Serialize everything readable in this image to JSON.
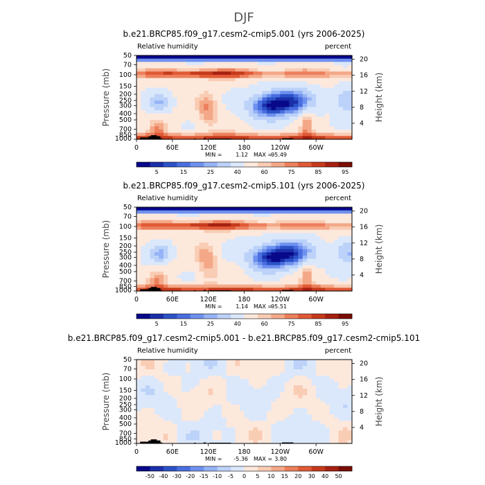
{
  "figure": {
    "title": "DJF"
  },
  "chart_data": [
    {
      "type": "heatmap",
      "title": "b.e21.BRCP85.f09_g17.cesm2-cmip5.001 (yrs 2006-2025)",
      "left_label": "Relative humidity",
      "right_label": "percent",
      "ylabel": "Pressure (mb)",
      "y2label": "Height (km)",
      "x_ticks": [
        "0",
        "60E",
        "120E",
        "180",
        "120W",
        "60W"
      ],
      "y_ticks": [
        "50",
        "70",
        "100",
        "150",
        "200",
        "250",
        "300",
        "400",
        "500",
        "700",
        "850",
        "1000"
      ],
      "y2_ticks": [
        "20",
        "16",
        "12",
        "8",
        "4"
      ],
      "stats": {
        "min_label": "MIN =",
        "min": "1.12",
        "max_label": "MAX =",
        "max": "95.49"
      },
      "colorbar_labels": [
        "5",
        "15",
        "25",
        "40",
        "60",
        "75",
        "85",
        "95"
      ],
      "colors": [
        "#08088a",
        "#1a2fa8",
        "#2c52c8",
        "#4a6ee0",
        "#6e91ee",
        "#95b3f6",
        "#bcd2f9",
        "#dbe8fb",
        "#fde8dc",
        "#f9ccb4",
        "#f4a888",
        "#ec7f5c",
        "#e05a36",
        "#c63a1c",
        "#a62010",
        "#7a0d04"
      ],
      "x_range": [
        0,
        360
      ],
      "y_range": [
        1000,
        50
      ]
    },
    {
      "type": "heatmap",
      "title": "b.e21.BRCP85.f09_g17.cesm2-cmip5.101 (yrs 2006-2025)",
      "left_label": "Relative humidity",
      "right_label": "percent",
      "ylabel": "Pressure (mb)",
      "y2label": "Height (km)",
      "x_ticks": [
        "0",
        "60E",
        "120E",
        "180",
        "120W",
        "60W"
      ],
      "y_ticks": [
        "50",
        "70",
        "100",
        "150",
        "200",
        "250",
        "300",
        "400",
        "500",
        "700",
        "850",
        "1000"
      ],
      "y2_ticks": [
        "20",
        "16",
        "12",
        "8",
        "4"
      ],
      "stats": {
        "min_label": "MIN =",
        "min": "1.14",
        "max_label": "MAX =",
        "max": "95.51"
      },
      "colorbar_labels": [
        "5",
        "15",
        "25",
        "40",
        "60",
        "75",
        "85",
        "95"
      ],
      "colors": [
        "#08088a",
        "#1a2fa8",
        "#2c52c8",
        "#4a6ee0",
        "#6e91ee",
        "#95b3f6",
        "#bcd2f9",
        "#dbe8fb",
        "#fde8dc",
        "#f9ccb4",
        "#f4a888",
        "#ec7f5c",
        "#e05a36",
        "#c63a1c",
        "#a62010",
        "#7a0d04"
      ],
      "x_range": [
        0,
        360
      ],
      "y_range": [
        1000,
        50
      ]
    },
    {
      "type": "heatmap",
      "title": "b.e21.BRCP85.f09_g17.cesm2-cmip5.001 - b.e21.BRCP85.f09_g17.cesm2-cmip5.101",
      "left_label": "Relative humidity",
      "right_label": "percent",
      "ylabel": "Pressure (mb)",
      "y2label": "Height (km)",
      "x_ticks": [
        "0",
        "60E",
        "120E",
        "180",
        "120W",
        "60W"
      ],
      "y_ticks": [
        "50",
        "70",
        "100",
        "150",
        "200",
        "250",
        "300",
        "400",
        "500",
        "700",
        "850",
        "1000"
      ],
      "y2_ticks": [
        "20",
        "16",
        "12",
        "8",
        "4"
      ],
      "stats": {
        "min_label": "MIN =",
        "min": "-5.36",
        "max_label": "MAX =",
        "max": "3.80"
      },
      "colorbar_labels": [
        "-50",
        "-40",
        "-30",
        "-20",
        "-15",
        "-10",
        "-5",
        "0",
        "5",
        "10",
        "15",
        "20",
        "30",
        "40",
        "50"
      ],
      "colors": [
        "#08088a",
        "#1a2fa8",
        "#2c52c8",
        "#4a6ee0",
        "#6e91ee",
        "#95b3f6",
        "#bcd2f9",
        "#dbe8fb",
        "#fde8dc",
        "#f9ccb4",
        "#f4a888",
        "#ec7f5c",
        "#e05a36",
        "#c63a1c",
        "#a62010",
        "#7a0d04"
      ],
      "x_range": [
        0,
        360
      ],
      "y_range": [
        1000,
        50
      ]
    }
  ]
}
